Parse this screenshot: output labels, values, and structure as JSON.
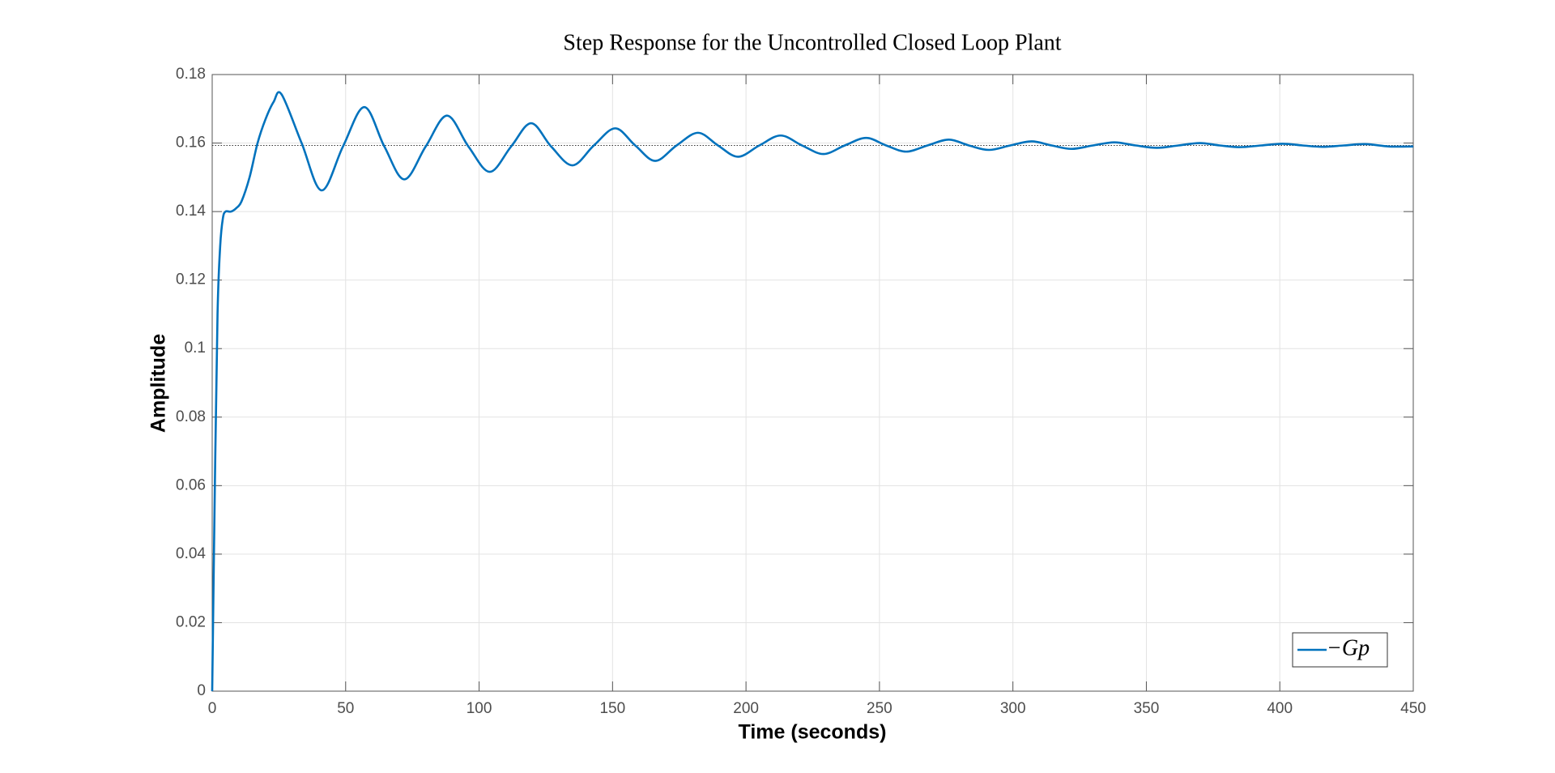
{
  "chart_data": {
    "type": "line",
    "title": "Step Response for the Uncontrolled Closed Loop Plant",
    "x_label": "Time (seconds)",
    "y_label": "Amplitude",
    "x": [
      0,
      1,
      2,
      3,
      4,
      5,
      7,
      9,
      11,
      14,
      17,
      20,
      23,
      26,
      33.5,
      41,
      49,
      57,
      64.5,
      72,
      80,
      88,
      96,
      104,
      112,
      119.5,
      127,
      135,
      143,
      151,
      158.5,
      166,
      174,
      182,
      189.5,
      197,
      205,
      213,
      221,
      229,
      237,
      245,
      252.5,
      260,
      268,
      276,
      283.5,
      291,
      299,
      307,
      314.5,
      322,
      330,
      338,
      346,
      354,
      362,
      370,
      377.5,
      385,
      393,
      401,
      408.5,
      416,
      424,
      432,
      441,
      450
    ],
    "series": [
      {
        "name": "−Gp",
        "color": "#0072bd",
        "values": [
          0,
          0.06,
          0.11,
          0.13,
          0.138,
          0.14,
          0.14,
          0.141,
          0.143,
          0.15,
          0.16,
          0.167,
          0.172,
          0.1742,
          0.16,
          0.1462,
          0.159,
          0.1705,
          0.159,
          0.1494,
          0.159,
          0.168,
          0.159,
          0.1516,
          0.159,
          0.1658,
          0.159,
          0.1535,
          0.1593,
          0.1643,
          0.1593,
          0.1548,
          0.1593,
          0.163,
          0.1593,
          0.156,
          0.1593,
          0.1622,
          0.1593,
          0.1568,
          0.1593,
          0.1615,
          0.1593,
          0.1575,
          0.1593,
          0.161,
          0.1593,
          0.158,
          0.1593,
          0.1605,
          0.1593,
          0.1583,
          0.1593,
          0.1602,
          0.1593,
          0.1586,
          0.1593,
          0.16,
          0.1593,
          0.1588,
          0.1593,
          0.1598,
          0.1593,
          0.1589,
          0.1593,
          0.1597,
          0.159,
          0.159
        ]
      }
    ],
    "reference_line": 0.1593,
    "xlim": [
      0,
      450
    ],
    "xticks": [
      0,
      50,
      100,
      150,
      200,
      250,
      300,
      350,
      400,
      450
    ],
    "ylim": [
      0,
      0.18
    ],
    "yticks": [
      0,
      0.02,
      0.04,
      0.06,
      0.08,
      0.1,
      0.12,
      0.14,
      0.16,
      0.18
    ],
    "grid": true,
    "legend": "lower right"
  }
}
